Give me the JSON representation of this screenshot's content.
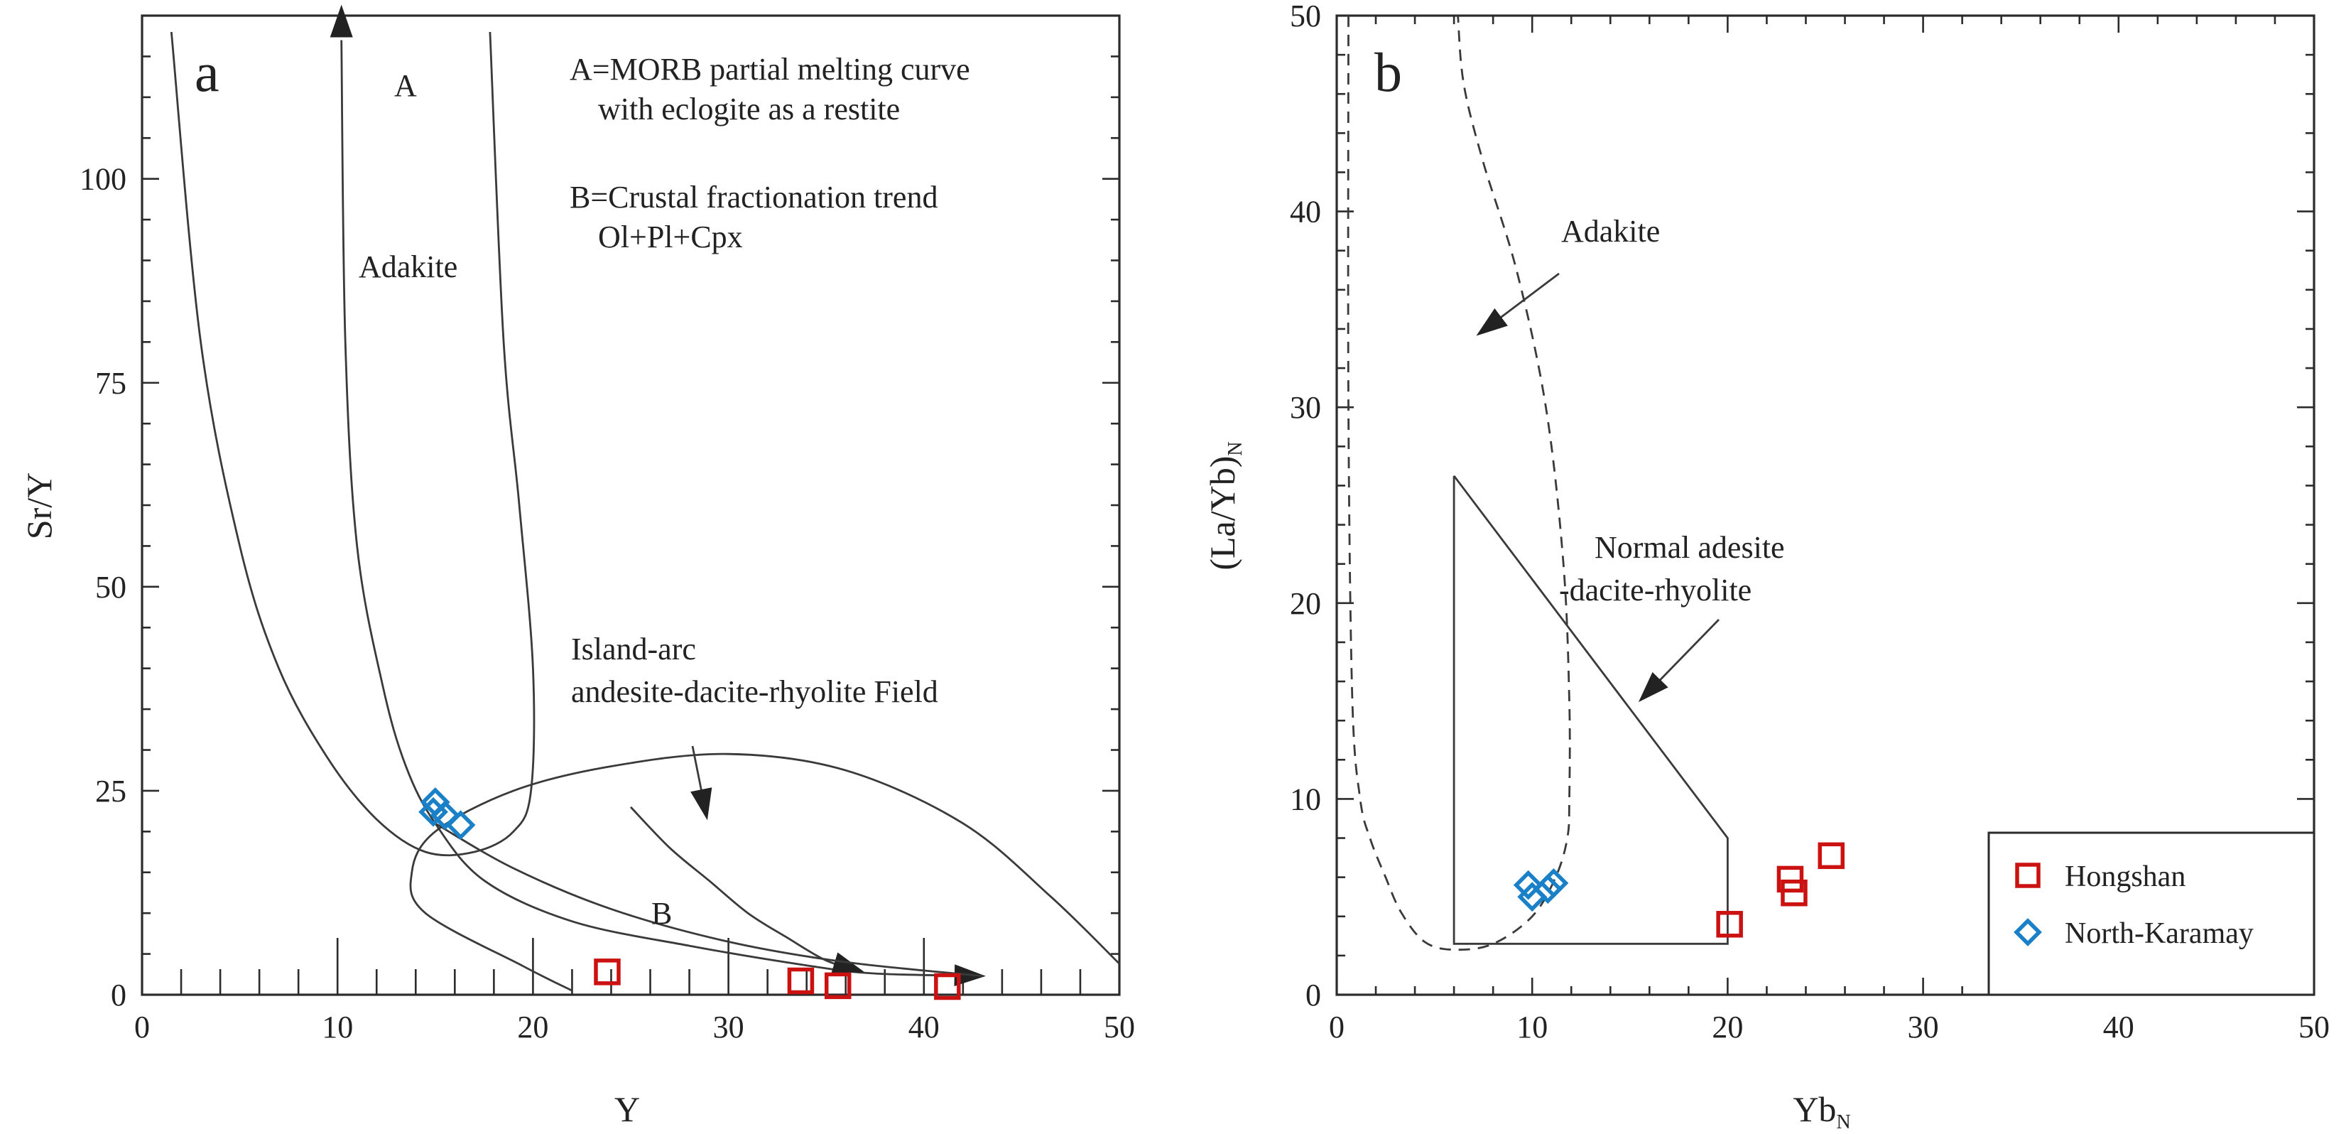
{
  "colors": {
    "hongshan": "#cc1111",
    "north_karamay": "#1a80c8",
    "line": "#3a3a3a"
  },
  "chart_data": [
    {
      "panel": "a",
      "type": "scatter",
      "xlabel": "Y",
      "ylabel": "Sr/Y",
      "xlim": [
        0,
        50
      ],
      "ylim": [
        0,
        120
      ],
      "xticks": [
        0,
        10,
        20,
        30,
        40,
        50
      ],
      "yticks": [
        0,
        25,
        50,
        75,
        100
      ],
      "x_minor_step": 2,
      "y_minor_step": 5,
      "annotations": {
        "legend_a": "A=MORB partial melting curve",
        "legend_a2": "with eclogite as a restite",
        "legend_b": "B=Crustal fractionation trend",
        "legend_b2": "Ol+Pl+Cpx",
        "label_A": "A",
        "label_B": "B",
        "adakite": "Adakite",
        "island_arc_1": "Island-arc",
        "island_arc_2": "andesite-dacite-rhyolite Field"
      },
      "series": [
        {
          "name": "Hongshan",
          "marker": "square",
          "points": [
            [
              23.8,
              2.8
            ],
            [
              33.7,
              1.7
            ],
            [
              35.6,
              1.1
            ],
            [
              41.2,
              1.0
            ]
          ]
        },
        {
          "name": "North-Karamay",
          "marker": "diamond",
          "points": [
            [
              15.0,
              23.6
            ],
            [
              14.9,
              22.4
            ],
            [
              15.5,
              22.0
            ],
            [
              16.3,
              20.8
            ]
          ]
        }
      ],
      "fields": {
        "curve_A": [
          [
            10.2,
            117
          ],
          [
            10.4,
            80
          ],
          [
            11.0,
            55
          ],
          [
            12.3,
            38
          ],
          [
            13.5,
            28
          ],
          [
            15.0,
            21
          ],
          [
            17.5,
            14
          ],
          [
            22,
            9
          ],
          [
            28,
            6
          ],
          [
            34,
            3.6
          ],
          [
            37.5,
            2.6
          ],
          [
            43,
            2.3
          ]
        ],
        "curve_B": [
          [
            25,
            23
          ],
          [
            27,
            18
          ],
          [
            29,
            14
          ],
          [
            31,
            10
          ],
          [
            33,
            7
          ],
          [
            35,
            4.2
          ],
          [
            36.8,
            2.9
          ]
        ],
        "adakite_boundary": [
          [
            1.5,
            118
          ],
          [
            3,
            80
          ],
          [
            5,
            55
          ],
          [
            7,
            40
          ],
          [
            9.5,
            29
          ],
          [
            12,
            21.5
          ],
          [
            14.5,
            17.5
          ],
          [
            17,
            17.5
          ],
          [
            19,
            20
          ],
          [
            19.9,
            25
          ],
          [
            20,
            40
          ],
          [
            19.3,
            60
          ],
          [
            18.5,
            80
          ],
          [
            17.8,
            118
          ]
        ],
        "island_arc": [
          [
            22,
            0.5
          ],
          [
            19.5,
            3.5
          ],
          [
            14.5,
            10
          ],
          [
            13.8,
            15
          ],
          [
            15,
            20
          ],
          [
            19,
            25
          ],
          [
            24,
            28
          ],
          [
            30,
            29.5
          ],
          [
            36,
            27.5
          ],
          [
            42,
            21
          ],
          [
            46.5,
            12
          ],
          [
            50,
            3.8
          ]
        ],
        "island_arc_lower": [
          [
            15,
            21
          ],
          [
            19,
            15.5
          ],
          [
            24,
            10.5
          ],
          [
            30,
            6.5
          ],
          [
            36,
            4
          ],
          [
            43,
            2.3
          ]
        ]
      }
    },
    {
      "panel": "b",
      "type": "scatter",
      "xlabel": "Yb",
      "xlabel_sub": "N",
      "ylabel": "(La/Yb)",
      "ylabel_sub": "N",
      "xlim": [
        0,
        50
      ],
      "ylim": [
        0,
        50
      ],
      "xticks": [
        0,
        10,
        20,
        30,
        40,
        50
      ],
      "yticks": [
        0,
        10,
        20,
        30,
        40,
        50
      ],
      "x_minor_step": 2,
      "y_minor_step": 2,
      "annotations": {
        "adakite": "Adakite",
        "normal_1": "Normal adesite",
        "normal_2": "-dacite-rhyolite"
      },
      "series": [
        {
          "name": "Hongshan",
          "marker": "square",
          "points": [
            [
              20.1,
              3.6
            ],
            [
              23.2,
              5.9
            ],
            [
              23.4,
              5.2
            ],
            [
              25.3,
              7.1
            ]
          ]
        },
        {
          "name": "North-Karamay",
          "marker": "diamond",
          "points": [
            [
              9.8,
              5.6
            ],
            [
              10.0,
              5.0
            ],
            [
              10.8,
              5.4
            ],
            [
              11.1,
              5.7
            ]
          ]
        }
      ],
      "fields": {
        "normal_polygon": [
          [
            6.0,
            26.5
          ],
          [
            20.0,
            8.0
          ],
          [
            20.0,
            2.6
          ],
          [
            6.0,
            2.6
          ],
          [
            6.0,
            26.5
          ]
        ],
        "adakite_dashed": [
          [
            0.6,
            50
          ],
          [
            0.6,
            30
          ],
          [
            0.8,
            15
          ],
          [
            1.2,
            10
          ],
          [
            1.7,
            8
          ],
          [
            2.5,
            6
          ],
          [
            3.3,
            4.2
          ],
          [
            4.5,
            2.7
          ],
          [
            6,
            2.3
          ],
          [
            8,
            2.6
          ],
          [
            10,
            4
          ],
          [
            11.2,
            6
          ],
          [
            11.8,
            8
          ],
          [
            11.9,
            10
          ],
          [
            11.9,
            15
          ],
          [
            11.6,
            22
          ],
          [
            10.7,
            30
          ],
          [
            9.2,
            37
          ],
          [
            7.5,
            42.5
          ],
          [
            6.5,
            46.5
          ],
          [
            6.2,
            50
          ]
        ]
      },
      "legend": [
        {
          "label": "Hongshan",
          "marker": "square"
        },
        {
          "label": "North-Karamay",
          "marker": "diamond"
        }
      ]
    }
  ]
}
